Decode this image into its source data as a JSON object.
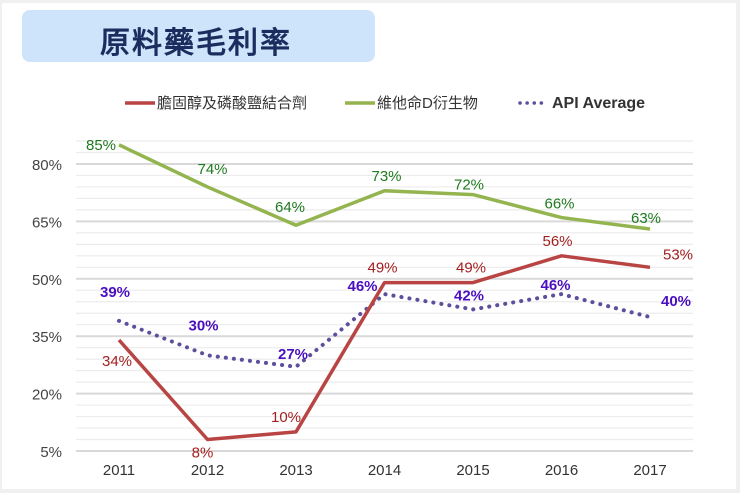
{
  "chart_data": {
    "type": "line",
    "title": "原料藥毛利率",
    "xlabel": "",
    "ylabel": "",
    "categories": [
      "2011",
      "2012",
      "2013",
      "2014",
      "2015",
      "2016",
      "2017"
    ],
    "ylim": [
      5,
      87
    ],
    "yticks": [
      "5%",
      "20%",
      "35%",
      "50%",
      "65%",
      "80%"
    ],
    "ytick_values": [
      5,
      20,
      35,
      50,
      65,
      80
    ],
    "grid": true,
    "legend_position": "top",
    "series": [
      {
        "name": "膽固醇及磷酸鹽結合劑",
        "values": [
          34,
          8,
          10,
          49,
          49,
          56,
          53
        ],
        "labels": [
          "34%",
          "8%",
          "10%",
          "49%",
          "49%",
          "56%",
          "53%"
        ],
        "color": "#b94444",
        "label_color": "#a31f1f",
        "style": "solid"
      },
      {
        "name": "維他命D衍生物",
        "values": [
          85,
          74,
          64,
          73,
          72,
          66,
          63
        ],
        "labels": [
          "85%",
          "74%",
          "64%",
          "73%",
          "72%",
          "66%",
          "63%"
        ],
        "color": "#93b44f",
        "label_color": "#1e7a1e",
        "style": "solid"
      },
      {
        "name": "API Average",
        "values": [
          39,
          30,
          27,
          46,
          42,
          46,
          40
        ],
        "labels": [
          "39%",
          "30%",
          "27%",
          "46%",
          "42%",
          "46%",
          "40%"
        ],
        "color": "#5e4f9c",
        "label_color": "#4a10c0",
        "style": "dotted"
      }
    ]
  }
}
